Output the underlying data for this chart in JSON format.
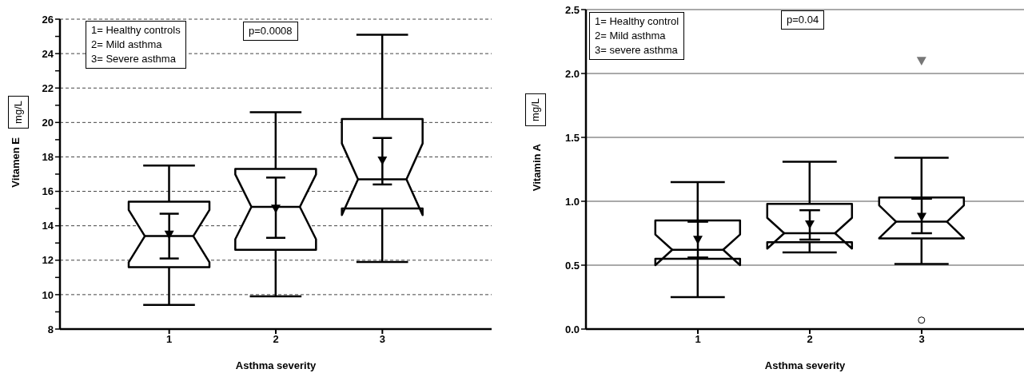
{
  "chart_data": [
    {
      "type": "box",
      "xlabel": "Asthma severity",
      "ylabel": "Vitamen E",
      "color": "#000000",
      "categories": [
        "1",
        "2",
        "3"
      ],
      "ylim": [
        8,
        26
      ],
      "yticks": [
        8,
        {
          "value": 9,
          "label": null
        },
        10,
        {
          "value": 11,
          "label": null
        },
        12,
        {
          "value": 13,
          "label": null
        },
        14,
        {
          "value": 15,
          "label": null
        },
        16,
        {
          "value": 17,
          "label": null
        },
        18,
        {
          "value": 19,
          "label": null
        },
        20,
        {
          "value": 21,
          "label": null
        },
        22,
        {
          "value": 23,
          "label": null
        },
        24,
        {
          "value": 25,
          "label": null
        },
        26
      ],
      "grid": "y",
      "boxes": [
        {
          "low": 9.4,
          "q1": 11.6,
          "median": 13.4,
          "q3": 15.4,
          "high": 17.5
        },
        {
          "low": 9.9,
          "q1": 12.6,
          "median": 15.1,
          "q3": 17.3,
          "high": 20.6
        },
        {
          "low": 11.9,
          "q1": 15.0,
          "median": 16.7,
          "q3": 20.2,
          "high": 25.1
        }
      ],
      "series": [
        {
          "type": "scatter",
          "marker": "triangle",
          "color": "#000000",
          "x": [
            "1",
            "2",
            "3"
          ],
          "values": [
            13.5,
            15.0,
            17.8
          ],
          "errors": [
            [
              12.1,
              14.7
            ],
            [
              13.3,
              16.8
            ],
            [
              16.4,
              19.1
            ]
          ]
        }
      ],
      "annotations": [
        "1= Healthy controls\n2= Mild asthma\n3= Severe asthma",
        "p=0.0008",
        "mg/L"
      ]
    },
    {
      "type": "box",
      "xlabel": "Asthma severity",
      "ylabel": "Vitamin A",
      "color": "#000000",
      "categories": [
        "1",
        "2",
        "3"
      ],
      "ylim": [
        0,
        2.5
      ],
      "yticks": [
        {
          "value": 0,
          "label": "0.0"
        },
        {
          "value": 0.5,
          "label": "0.5"
        },
        {
          "value": 1,
          "label": "1.0"
        },
        {
          "value": 1.5,
          "label": "1.5"
        },
        {
          "value": 2,
          "label": "2.0"
        },
        {
          "value": 2.5,
          "label": "2.5"
        }
      ],
      "grid": "y",
      "boxes": [
        {
          "low": 0.25,
          "q1": 0.55,
          "median": 0.62,
          "q3": 0.85,
          "high": 1.15
        },
        {
          "low": 0.6,
          "q1": 0.68,
          "median": 0.75,
          "q3": 0.98,
          "high": 1.31
        },
        {
          "low": 0.51,
          "q1": 0.71,
          "median": 0.84,
          "q3": 1.03,
          "high": 1.34,
          "outliers": [
            2.1,
            0.07
          ]
        }
      ],
      "series": [
        {
          "type": "scatter",
          "marker": "triangle",
          "color": "#000000",
          "x": [
            "1",
            "2",
            "3"
          ],
          "values": [
            0.7,
            0.82,
            0.88
          ],
          "errors": [
            [
              0.56,
              0.84
            ],
            [
              0.7,
              0.93
            ],
            [
              0.75,
              1.02
            ]
          ]
        }
      ],
      "annotations": [
        "1= Healthy control\n2= Mild asthma\n3= severe asthma",
        "p=0.04",
        "mg/L"
      ]
    }
  ]
}
